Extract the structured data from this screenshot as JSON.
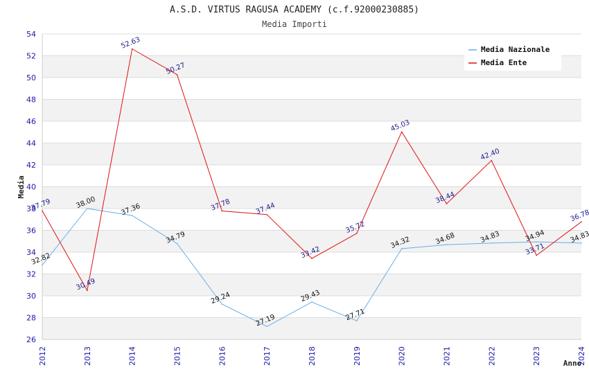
{
  "chart_data": {
    "type": "line",
    "title": "A.S.D. VIRTUS RAGUSA ACADEMY (c.f.92000230885)",
    "subtitle": "Media Importi",
    "xlabel": "Anno",
    "ylabel": "Media",
    "ylim": [
      26,
      54
    ],
    "ytick_step": 2,
    "grid": true,
    "legend_position": "top-right",
    "x": [
      "2012",
      "2013",
      "2014",
      "2015",
      "2016",
      "2017",
      "2018",
      "2019",
      "2020",
      "2021",
      "2022",
      "2023",
      "2024"
    ],
    "series": [
      {
        "name": "Media Nazionale",
        "color": "#6aaee8",
        "values": [
          32.82,
          38.0,
          37.36,
          34.79,
          29.24,
          27.19,
          29.43,
          27.71,
          34.32,
          34.68,
          34.83,
          34.94,
          34.83
        ],
        "labels": [
          "32.82",
          "38.00",
          "37.36",
          "34.79",
          "29.24",
          "27.19",
          "29.43",
          "27.71",
          "34.32",
          "34.68",
          "34.83",
          "34.94",
          "34.83"
        ]
      },
      {
        "name": "Media Ente",
        "color": "#e01010",
        "values": [
          37.79,
          30.49,
          52.63,
          50.27,
          37.78,
          37.44,
          33.42,
          35.72,
          45.03,
          38.44,
          42.4,
          33.71,
          36.78
        ],
        "labels": [
          "37.79",
          "30.49",
          "52.63",
          "50.27",
          "37.78",
          "37.44",
          "33.42",
          "35.72",
          "45.03",
          "38.44",
          "42.40",
          "33.71",
          "36.78"
        ]
      }
    ]
  }
}
